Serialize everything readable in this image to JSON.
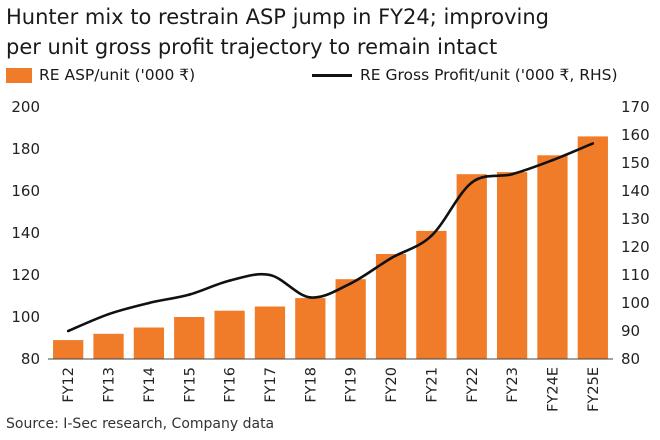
{
  "title_line1": "Hunter mix to restrain ASP jump in FY24; improving",
  "title_line2": "per unit gross profit trajectory to remain intact",
  "source": "Source: I-Sec research, Company data",
  "colors": {
    "bar": "#f07c2a",
    "line": "#111111"
  },
  "chart_data": {
    "type": "bar+line",
    "title": "Hunter mix to restrain ASP jump in FY24; improving per unit gross profit trajectory to remain intact",
    "categories": [
      "FY12",
      "FY13",
      "FY14",
      "FY15",
      "FY16",
      "FY17",
      "FY18",
      "FY19",
      "FY20",
      "FY21",
      "FY22",
      "FY23",
      "FY24E",
      "FY25E"
    ],
    "series": [
      {
        "name": "RE ASP/unit ('000 ₹)",
        "type": "bar",
        "axis": "left",
        "values": [
          89,
          92,
          95,
          100,
          103,
          105,
          109,
          118,
          130,
          141,
          168,
          169,
          177,
          186
        ]
      },
      {
        "name": "RE Gross Profit/unit ('000 ₹, RHS)",
        "type": "line",
        "axis": "right",
        "values": [
          90,
          96,
          100,
          103,
          108,
          110,
          102,
          107,
          116,
          124,
          143,
          146,
          151,
          157
        ]
      }
    ],
    "y_left": {
      "min": 80,
      "max": 200,
      "ticks": [
        80,
        100,
        120,
        140,
        160,
        180,
        200
      ]
    },
    "y_right": {
      "min": 80,
      "max": 170,
      "ticks": [
        80,
        90,
        100,
        110,
        120,
        130,
        140,
        150,
        160,
        170
      ]
    },
    "legend_position": "top"
  }
}
